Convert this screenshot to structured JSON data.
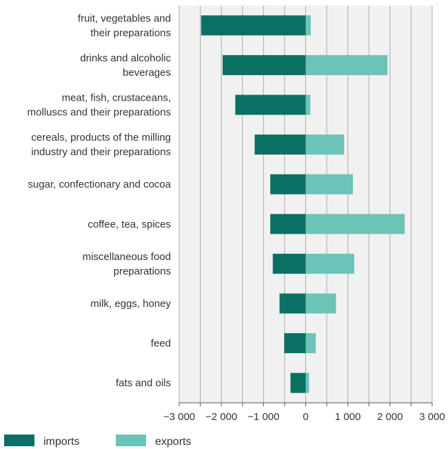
{
  "chart_data": {
    "type": "bar",
    "orientation": "horizontal",
    "categories": [
      [
        "fruit, vegetables and",
        "their preparations"
      ],
      [
        "drinks and alcoholic",
        "beverages"
      ],
      [
        "meat, fish, crustaceans,",
        "molluscs and their preparations"
      ],
      [
        "cereals, products of the milling",
        "industry and their preparations"
      ],
      [
        "sugar, confectionary and cocoa"
      ],
      [
        "coffee, tea, spices"
      ],
      [
        "miscellaneous food",
        "preparations"
      ],
      [
        "milk, eggs, honey"
      ],
      [
        "feed"
      ],
      [
        "fats and oils"
      ]
    ],
    "series": [
      {
        "name": "imports",
        "color": "#0b7064",
        "values": [
          -2480,
          -1970,
          -1670,
          -1210,
          -840,
          -840,
          -780,
          -620,
          -510,
          -360
        ]
      },
      {
        "name": "exports",
        "color": "#6cc3b8",
        "values": [
          120,
          1940,
          110,
          910,
          1120,
          2350,
          1150,
          720,
          240,
          80
        ]
      }
    ],
    "xlim": [
      -3000,
      3000
    ],
    "xticks": [
      -3000,
      -2000,
      -1000,
      0,
      1000,
      2000,
      3000
    ],
    "xtick_labels": [
      "−3 000",
      "−2 000",
      "−1 000",
      "0",
      "1 000",
      "2 000",
      "3 000"
    ],
    "grid": true,
    "legend_position": "bottom-left",
    "plot_background": "#f0f1f0",
    "title": "",
    "xlabel": "",
    "ylabel": ""
  }
}
